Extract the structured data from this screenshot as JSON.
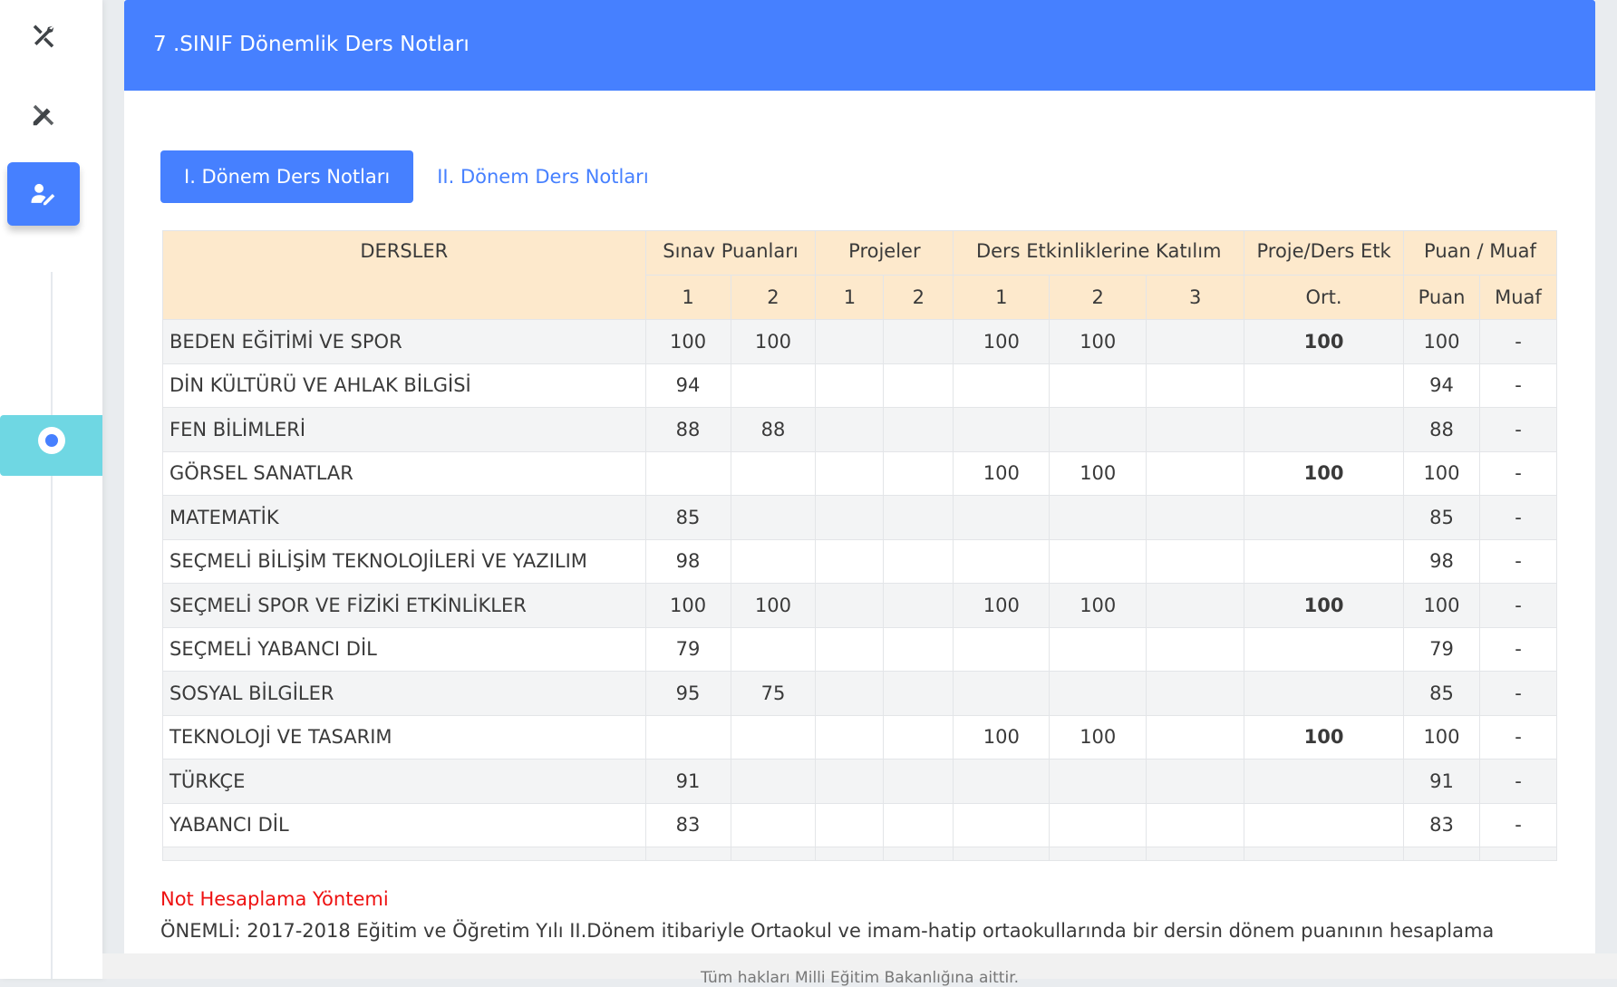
{
  "sidebar": {
    "icons": [
      "tools-icon",
      "design-tools-icon",
      "user-edit-icon"
    ],
    "active": 2
  },
  "header": {
    "title": "7 .SINIF Dönemlik Ders Notları"
  },
  "tabs": [
    {
      "label": "I. Dönem Ders Notları",
      "active": true
    },
    {
      "label": "II. Dönem Ders Notları",
      "active": false
    }
  ],
  "table": {
    "group_headers": [
      "DERSLER",
      "Sınav Puanları",
      "Projeler",
      "Ders Etkinliklerine Katılım",
      "Proje/Ders Etk",
      "Puan / Muaf"
    ],
    "sub_headers": [
      "1",
      "2",
      "1",
      "2",
      "1",
      "2",
      "3",
      "Ort.",
      "Puan",
      "Muaf"
    ],
    "rows": [
      {
        "name": "BEDEN EĞİTİMİ VE SPOR",
        "cells": [
          "100",
          "100",
          "",
          "",
          "100",
          "100",
          "",
          "100",
          "100",
          "-"
        ]
      },
      {
        "name": "DİN KÜLTÜRÜ VE AHLAK BİLGİSİ",
        "cells": [
          "94",
          "",
          "",
          "",
          "",
          "",
          "",
          "",
          "94",
          "-"
        ]
      },
      {
        "name": "FEN BİLİMLERİ",
        "cells": [
          "88",
          "88",
          "",
          "",
          "",
          "",
          "",
          "",
          "88",
          "-"
        ]
      },
      {
        "name": "GÖRSEL SANATLAR",
        "cells": [
          "",
          "",
          "",
          "",
          "100",
          "100",
          "",
          "100",
          "100",
          "-"
        ]
      },
      {
        "name": "MATEMATİK",
        "cells": [
          "85",
          "",
          "",
          "",
          "",
          "",
          "",
          "",
          "85",
          "-"
        ]
      },
      {
        "name": "SEÇMELİ BİLİŞİM TEKNOLOJİLERİ VE YAZILIM",
        "cells": [
          "98",
          "",
          "",
          "",
          "",
          "",
          "",
          "",
          "98",
          "-"
        ]
      },
      {
        "name": "SEÇMELİ SPOR VE FİZİKİ ETKİNLİKLER",
        "cells": [
          "100",
          "100",
          "",
          "",
          "100",
          "100",
          "",
          "100",
          "100",
          "-"
        ]
      },
      {
        "name": "SEÇMELİ YABANCI DİL",
        "cells": [
          "79",
          "",
          "",
          "",
          "",
          "",
          "",
          "",
          "79",
          "-"
        ]
      },
      {
        "name": "SOSYAL BİLGİLER",
        "cells": [
          "95",
          "75",
          "",
          "",
          "",
          "",
          "",
          "",
          "85",
          "-"
        ]
      },
      {
        "name": "TEKNOLOJİ VE TASARIM",
        "cells": [
          "",
          "",
          "",
          "",
          "100",
          "100",
          "",
          "100",
          "100",
          "-"
        ]
      },
      {
        "name": "TÜRKÇE",
        "cells": [
          "91",
          "",
          "",
          "",
          "",
          "",
          "",
          "",
          "91",
          "-"
        ]
      },
      {
        "name": "YABANCI DİL",
        "cells": [
          "83",
          "",
          "",
          "",
          "",
          "",
          "",
          "",
          "83",
          "-"
        ]
      }
    ]
  },
  "note": {
    "title": "Not Hesaplama Yöntemi",
    "text": "ÖNEMLİ: 2017-2018 Eğitim ve Öğretim Yılı II.Dönem itibariyle Ortaokul ve imam-hatip ortaokullarında bir dersin dönem puanının hesaplama"
  },
  "footer": {
    "text": "Tüm hakları Milli Eğitim Bakanlığına aittir."
  },
  "colors": {
    "primary": "#4680ff",
    "header_bg": "#fde9cc",
    "note_title": "#ee1111",
    "toggle": "#6fd7e3"
  }
}
